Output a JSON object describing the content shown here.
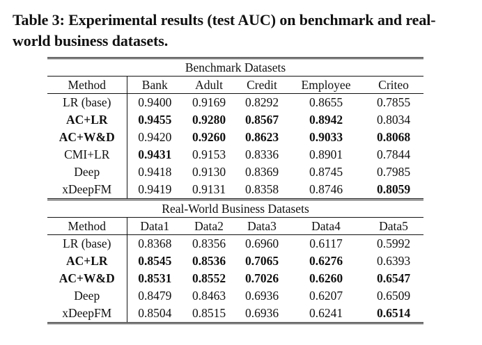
{
  "caption": "Table 3: Experimental results (test AUC) on benchmark and real-world business datasets.",
  "benchmark": {
    "title": "Benchmark Datasets",
    "headers": [
      "Method",
      "Bank",
      "Adult",
      "Credit",
      "Employee",
      "Criteo"
    ],
    "rows": [
      {
        "method": "LR (base)",
        "method_bold": false,
        "cells": [
          {
            "v": "0.9400",
            "bold": false
          },
          {
            "v": "0.9169",
            "bold": false
          },
          {
            "v": "0.8292",
            "bold": false
          },
          {
            "v": "0.8655",
            "bold": false
          },
          {
            "v": "0.7855",
            "bold": false
          }
        ]
      },
      {
        "method": "AC+LR",
        "method_bold": true,
        "cells": [
          {
            "v": "0.9455",
            "bold": true
          },
          {
            "v": "0.9280",
            "bold": true
          },
          {
            "v": "0.8567",
            "bold": true
          },
          {
            "v": "0.8942",
            "bold": true
          },
          {
            "v": "0.8034",
            "bold": false
          }
        ]
      },
      {
        "method": "AC+W&D",
        "method_bold": true,
        "cells": [
          {
            "v": "0.9420",
            "bold": false
          },
          {
            "v": "0.9260",
            "bold": true
          },
          {
            "v": "0.8623",
            "bold": true
          },
          {
            "v": "0.9033",
            "bold": true
          },
          {
            "v": "0.8068",
            "bold": true
          }
        ]
      },
      {
        "method": "CMI+LR",
        "method_bold": false,
        "cells": [
          {
            "v": "0.9431",
            "bold": true
          },
          {
            "v": "0.9153",
            "bold": false
          },
          {
            "v": "0.8336",
            "bold": false
          },
          {
            "v": "0.8901",
            "bold": false
          },
          {
            "v": "0.7844",
            "bold": false
          }
        ]
      },
      {
        "method": "Deep",
        "method_bold": false,
        "cells": [
          {
            "v": "0.9418",
            "bold": false
          },
          {
            "v": "0.9130",
            "bold": false
          },
          {
            "v": "0.8369",
            "bold": false
          },
          {
            "v": "0.8745",
            "bold": false
          },
          {
            "v": "0.7985",
            "bold": false
          }
        ]
      },
      {
        "method": "xDeepFM",
        "method_bold": false,
        "cells": [
          {
            "v": "0.9419",
            "bold": false
          },
          {
            "v": "0.9131",
            "bold": false
          },
          {
            "v": "0.8358",
            "bold": false
          },
          {
            "v": "0.8746",
            "bold": false
          },
          {
            "v": "0.8059",
            "bold": true
          }
        ]
      }
    ]
  },
  "realworld": {
    "title": "Real-World Business Datasets",
    "headers": [
      "Method",
      "Data1",
      "Data2",
      "Data3",
      "Data4",
      "Data5"
    ],
    "rows": [
      {
        "method": "LR (base)",
        "method_bold": false,
        "cells": [
          {
            "v": "0.8368",
            "bold": false
          },
          {
            "v": "0.8356",
            "bold": false
          },
          {
            "v": "0.6960",
            "bold": false
          },
          {
            "v": "0.6117",
            "bold": false
          },
          {
            "v": "0.5992",
            "bold": false
          }
        ]
      },
      {
        "method": "AC+LR",
        "method_bold": true,
        "cells": [
          {
            "v": "0.8545",
            "bold": true
          },
          {
            "v": "0.8536",
            "bold": true
          },
          {
            "v": "0.7065",
            "bold": true
          },
          {
            "v": "0.6276",
            "bold": true
          },
          {
            "v": "0.6393",
            "bold": false
          }
        ]
      },
      {
        "method": "AC+W&D",
        "method_bold": true,
        "cells": [
          {
            "v": "0.8531",
            "bold": true
          },
          {
            "v": "0.8552",
            "bold": true
          },
          {
            "v": "0.7026",
            "bold": true
          },
          {
            "v": "0.6260",
            "bold": true
          },
          {
            "v": "0.6547",
            "bold": true
          }
        ]
      },
      {
        "method": "Deep",
        "method_bold": false,
        "cells": [
          {
            "v": "0.8479",
            "bold": false
          },
          {
            "v": "0.8463",
            "bold": false
          },
          {
            "v": "0.6936",
            "bold": false
          },
          {
            "v": "0.6207",
            "bold": false
          },
          {
            "v": "0.6509",
            "bold": false
          }
        ]
      },
      {
        "method": "xDeepFM",
        "method_bold": false,
        "cells": [
          {
            "v": "0.8504",
            "bold": false
          },
          {
            "v": "0.8515",
            "bold": false
          },
          {
            "v": "0.6936",
            "bold": false
          },
          {
            "v": "0.6241",
            "bold": false
          },
          {
            "v": "0.6514",
            "bold": true
          }
        ]
      }
    ]
  }
}
